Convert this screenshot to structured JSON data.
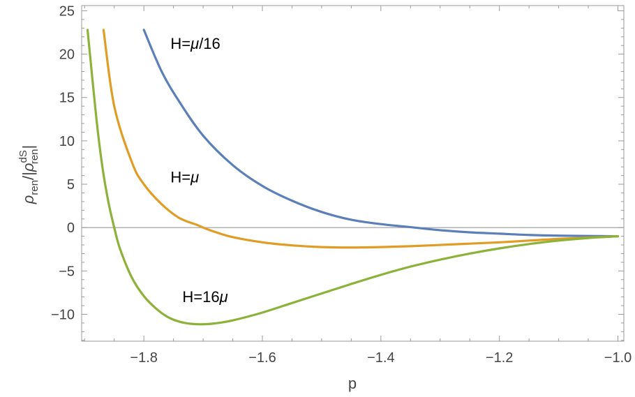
{
  "chart_data": {
    "type": "line",
    "title": "",
    "xlabel": "p",
    "ylabel": {
      "main": "ρ",
      "main_sub": "ren",
      "sep": "/|",
      "denom": "ρ",
      "denom_sup": "dS",
      "denom_sub": "ren",
      "close": "|"
    },
    "xlim": [
      -1.905,
      -0.99
    ],
    "ylim": [
      -13.1,
      25.6
    ],
    "xticks": [
      -1.8,
      -1.6,
      -1.4,
      -1.2,
      -1.0
    ],
    "xtick_labels": [
      "−1.8",
      "−1.6",
      "−1.4",
      "−1.2",
      "−1.0"
    ],
    "yticks": [
      -10,
      -5,
      0,
      5,
      10,
      15,
      20,
      25
    ],
    "ytick_labels": [
      "−10",
      "−5",
      "0",
      "5",
      "10",
      "15",
      "20",
      "25"
    ],
    "grid": false,
    "zero_line": true,
    "series": [
      {
        "label": "H=μ/16",
        "color": "#5b7fb9",
        "x": [
          -1.8,
          -1.77,
          -1.74,
          -1.7,
          -1.65,
          -1.6,
          -1.55,
          -1.5,
          -1.45,
          -1.4,
          -1.35,
          -1.3,
          -1.25,
          -1.2,
          -1.15,
          -1.1,
          -1.05,
          -1.0
        ],
        "y": [
          22.8,
          18.0,
          14.5,
          10.6,
          7.2,
          4.8,
          3.1,
          1.8,
          0.9,
          0.4,
          0.05,
          -0.3,
          -0.55,
          -0.7,
          -0.85,
          -0.93,
          -0.97,
          -1.0
        ]
      },
      {
        "label": "H=μ",
        "color": "#e09c24",
        "x": [
          -1.868,
          -1.85,
          -1.82,
          -1.8,
          -1.77,
          -1.74,
          -1.71,
          -1.7,
          -1.68,
          -1.65,
          -1.6,
          -1.55,
          -1.5,
          -1.45,
          -1.4,
          -1.35,
          -1.3,
          -1.25,
          -1.2,
          -1.15,
          -1.1,
          -1.05,
          -1.0
        ],
        "y": [
          22.8,
          14.0,
          7.5,
          5.0,
          2.7,
          1.1,
          0.3,
          0.0,
          -0.5,
          -1.1,
          -1.7,
          -2.05,
          -2.25,
          -2.3,
          -2.25,
          -2.15,
          -2.0,
          -1.85,
          -1.7,
          -1.5,
          -1.3,
          -1.15,
          -1.0
        ]
      },
      {
        "label": "H=16μ",
        "color": "#8cb23a",
        "x": [
          -1.895,
          -1.88,
          -1.87,
          -1.86,
          -1.85,
          -1.84,
          -1.82,
          -1.8,
          -1.78,
          -1.76,
          -1.74,
          -1.72,
          -1.7,
          -1.68,
          -1.65,
          -1.6,
          -1.55,
          -1.5,
          -1.45,
          -1.4,
          -1.35,
          -1.3,
          -1.25,
          -1.2,
          -1.15,
          -1.1,
          -1.05,
          -1.0
        ],
        "y": [
          22.8,
          12.5,
          7.0,
          3.0,
          0.0,
          -2.5,
          -5.8,
          -7.9,
          -9.3,
          -10.3,
          -10.85,
          -11.1,
          -11.15,
          -11.05,
          -10.7,
          -9.8,
          -8.7,
          -7.6,
          -6.5,
          -5.45,
          -4.5,
          -3.7,
          -3.0,
          -2.4,
          -1.9,
          -1.5,
          -1.2,
          -1.0
        ]
      }
    ],
    "annotations": [
      {
        "text_main": "H=",
        "text_var": "μ",
        "text_tail": "/16",
        "x": -1.755,
        "y": 20.6
      },
      {
        "text_main": "H=",
        "text_var": "μ",
        "text_tail": "",
        "x": -1.755,
        "y": 5.2
      },
      {
        "text_main": "H=16",
        "text_var": "μ",
        "text_tail": "",
        "x": -1.735,
        "y": -8.6
      }
    ]
  }
}
